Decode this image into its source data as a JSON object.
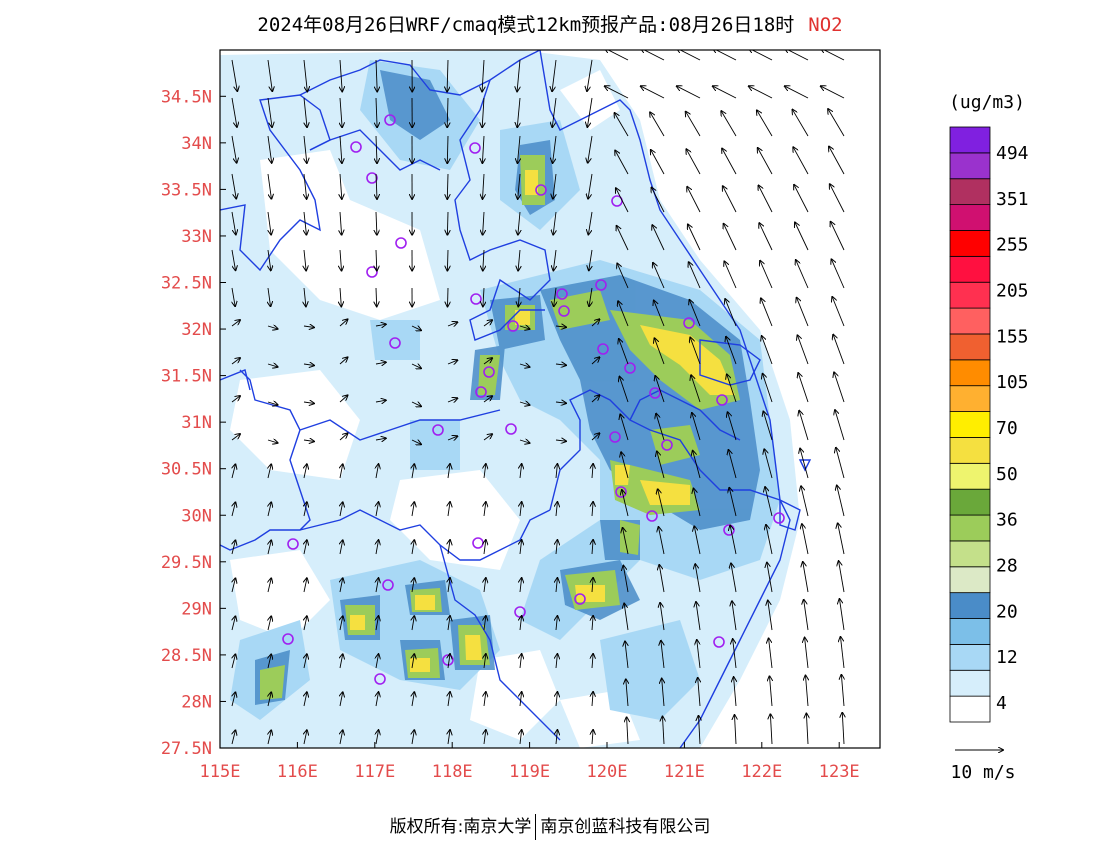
{
  "header": {
    "title": "2024年08月26日WRF/cmaq模式12km预报产品:08月26日18时",
    "species": "NO2"
  },
  "map": {
    "lon_ticks": [
      "115E",
      "116E",
      "117E",
      "118E",
      "119E",
      "120E",
      "121E",
      "122E",
      "123E"
    ],
    "lat_ticks": [
      "27.5N",
      "28N",
      "28.5N",
      "29N",
      "29.5N",
      "30N",
      "30.5N",
      "31N",
      "31.5N",
      "32N",
      "32.5N",
      "33N",
      "33.5N",
      "34N",
      "34.5N"
    ],
    "tick_color": "#e34b4b",
    "boundary_color": "#1f3fe0",
    "station_color": "#a020f0"
  },
  "colorbar": {
    "unit": "(ug/m3)",
    "labels": [
      "494",
      "351",
      "255",
      "205",
      "155",
      "105",
      "70",
      "50",
      "36",
      "28",
      "20",
      "12",
      "4"
    ],
    "colors": [
      "#ffffff",
      "#d6eefb",
      "#a8d8f5",
      "#7cbfe8",
      "#4a8cc8",
      "#dce9c6",
      "#c4e08a",
      "#9ccc5a",
      "#6aa83a",
      "#eef46e",
      "#f5e040",
      "#ffee00",
      "#ffb030",
      "#ff8c00",
      "#f06030",
      "#ff6060",
      "#ff3050",
      "#ff1040",
      "#ff0000",
      "#d01070",
      "#b03060",
      "#9a32cd",
      "#8020e0"
    ]
  },
  "legend": {
    "wind_label": "10 m/s"
  },
  "footer": {
    "left": "版权所有:南京大学",
    "right": "南京创蓝科技有限公司"
  }
}
